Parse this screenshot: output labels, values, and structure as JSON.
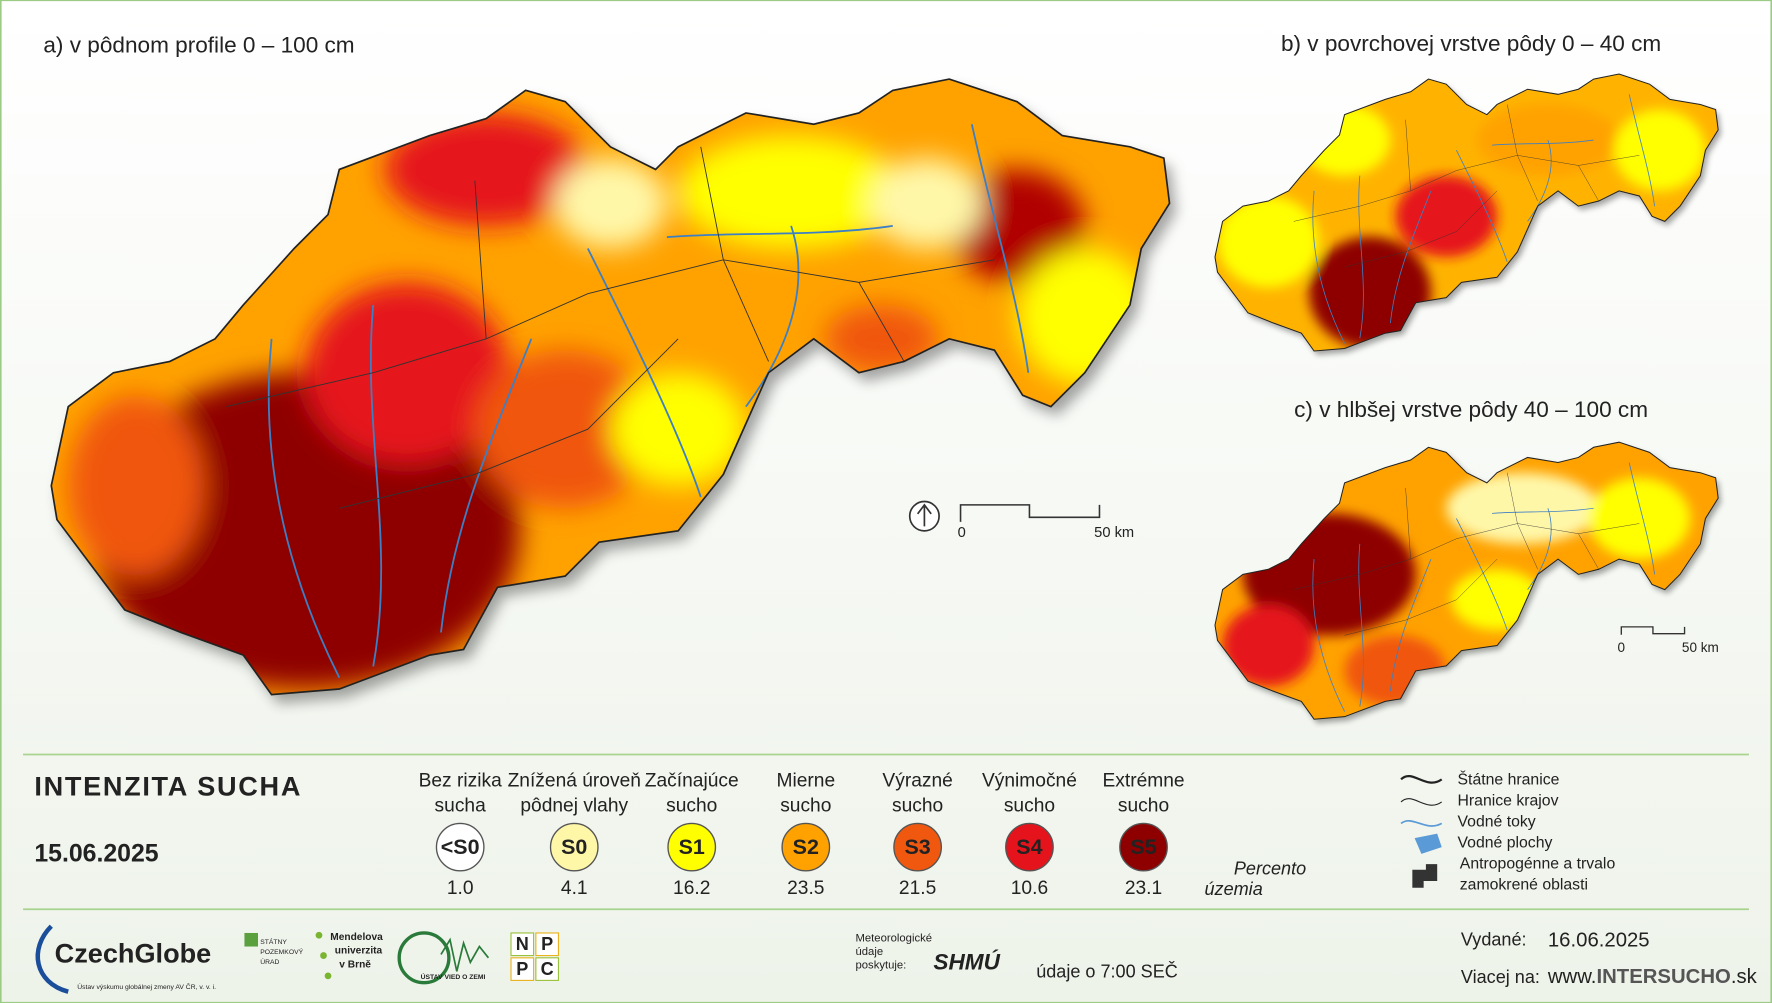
{
  "maps": {
    "main": {
      "title": "a) v pôdnom profile 0 – 100 cm",
      "scale_start": "0",
      "scale_end": "50 km"
    },
    "surface": {
      "title": "b) v povrchovej vrstve pôdy 0 – 40 cm"
    },
    "deep": {
      "title": "c) v hlbšej vrstve pôdy 40 – 100 cm",
      "scale_start": "0",
      "scale_end": "50 km"
    }
  },
  "legend": {
    "title": "INTENZITA SUCHA",
    "date": "15.06.2025",
    "percent_caption": [
      "Percento",
      "územia"
    ],
    "classes": [
      {
        "name": [
          "Bez rizika",
          "sucha"
        ],
        "code": "<S0",
        "percent": "1.0",
        "color": "#ffffff"
      },
      {
        "name": [
          "Znížená úroveň",
          "pôdnej vlahy"
        ],
        "code": "S0",
        "percent": "4.1",
        "color": "#fff7a8"
      },
      {
        "name": [
          "Začínajúce",
          "sucho"
        ],
        "code": "S1",
        "percent": "16.2",
        "color": "#ffff00"
      },
      {
        "name": [
          "Mierne",
          "sucho"
        ],
        "code": "S2",
        "percent": "23.5",
        "color": "#ffa200"
      },
      {
        "name": [
          "Výrazné",
          "sucho"
        ],
        "code": "S3",
        "percent": "21.5",
        "color": "#f0570f"
      },
      {
        "name": [
          "Výnimočné",
          "sucho"
        ],
        "code": "S4",
        "percent": "10.6",
        "color": "#e5131b"
      },
      {
        "name": [
          "Extrémne",
          "sucho"
        ],
        "code": "S5",
        "percent": "23.1",
        "color": "#8e0000"
      }
    ],
    "symbols": [
      "Štátne hranice",
      "Hranice krajov",
      "Vodné toky",
      "Vodné plochy",
      "Antropogénne a trvalo",
      "zamokrené oblasti"
    ]
  },
  "footer": {
    "czechglobe": "CzechGlobe",
    "czechglobe_sub": "Ústav výskumu globálnej zmeny AV ČR, v. v. i.",
    "spu": [
      "STÁTNY",
      "POZEMKOVÝ",
      "ÚRAD"
    ],
    "mendel": [
      "Mendelova",
      "univerzita",
      "v Brně"
    ],
    "uvz": "ÚSTAV VIED O ZEMI",
    "nppc": [
      "N",
      "P",
      "P",
      "C"
    ],
    "meteo": [
      "Meteorologické",
      "údaje",
      "poskytuje:"
    ],
    "shmu": "SHMÚ",
    "time": "údaje o 7:00 SEČ",
    "issued_label": "Vydané:",
    "issued": "16.06.2025",
    "more_label": "Viacej na:",
    "web": [
      "www.",
      "INTERSUCHO",
      ".sk"
    ]
  }
}
